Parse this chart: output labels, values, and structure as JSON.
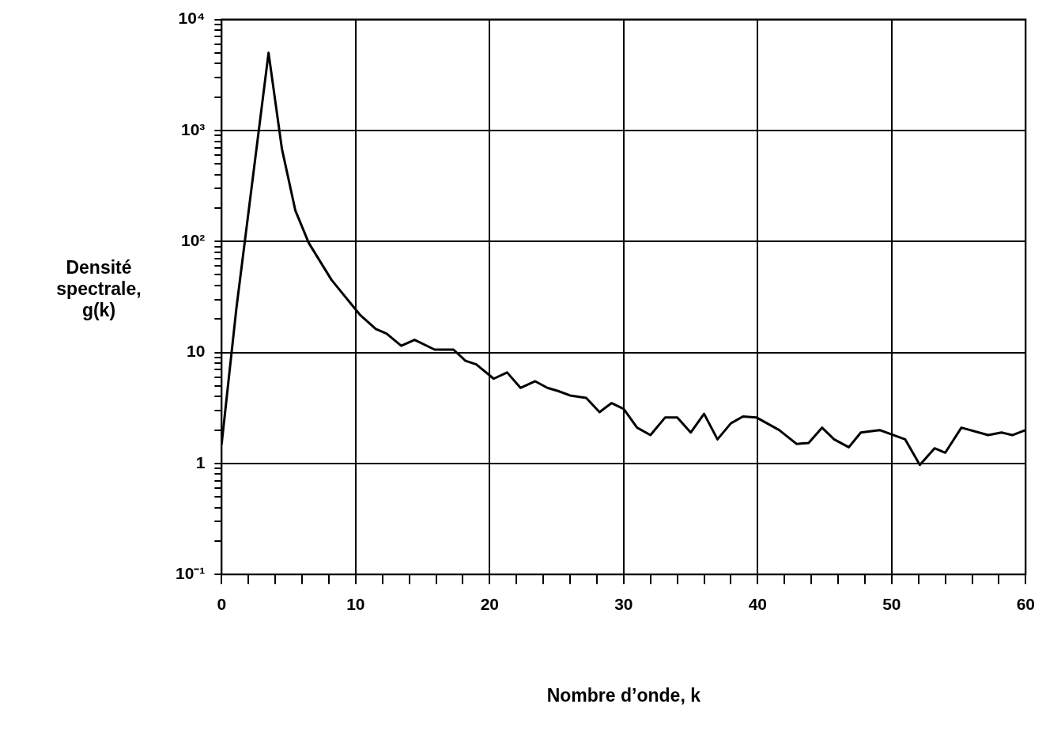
{
  "chart_data": {
    "type": "line",
    "xlabel": "Nombre d’onde, k",
    "ylabel": "Densité\nspectrale,\ng(k)",
    "log": "y",
    "grid": true,
    "marker": "none",
    "line_style": "solid",
    "legend": false,
    "xlim": [
      0,
      60
    ],
    "ylim": [
      0.1,
      10000
    ],
    "xticks": [
      0,
      {
        "value": 2,
        "label": null
      },
      {
        "value": 4,
        "label": null
      },
      {
        "value": 6,
        "label": null
      },
      {
        "value": 8,
        "label": null
      },
      10,
      {
        "value": 12,
        "label": null
      },
      {
        "value": 14,
        "label": null
      },
      {
        "value": 16,
        "label": null
      },
      {
        "value": 18,
        "label": null
      },
      20,
      {
        "value": 22,
        "label": null
      },
      {
        "value": 24,
        "label": null
      },
      {
        "value": 26,
        "label": null
      },
      {
        "value": 28,
        "label": null
      },
      30,
      {
        "value": 32,
        "label": null
      },
      {
        "value": 34,
        "label": null
      },
      {
        "value": 36,
        "label": null
      },
      {
        "value": 38,
        "label": null
      },
      40,
      {
        "value": 42,
        "label": null
      },
      {
        "value": 44,
        "label": null
      },
      {
        "value": 46,
        "label": null
      },
      {
        "value": 48,
        "label": null
      },
      50,
      {
        "value": 52,
        "label": null
      },
      {
        "value": 54,
        "label": null
      },
      {
        "value": 56,
        "label": null
      },
      {
        "value": 58,
        "label": null
      },
      60
    ],
    "yticks": [
      {
        "value": 0.1,
        "label": "10⁻¹"
      },
      {
        "value": 0.2,
        "label": null
      },
      {
        "value": 0.3,
        "label": null
      },
      {
        "value": 0.4,
        "label": null
      },
      {
        "value": 0.5,
        "label": null
      },
      {
        "value": 0.6,
        "label": null
      },
      {
        "value": 0.7,
        "label": null
      },
      {
        "value": 0.8,
        "label": null
      },
      {
        "value": 0.9,
        "label": null
      },
      1,
      {
        "value": 2,
        "label": null
      },
      {
        "value": 3,
        "label": null
      },
      {
        "value": 4,
        "label": null
      },
      {
        "value": 5,
        "label": null
      },
      {
        "value": 6,
        "label": null
      },
      {
        "value": 7,
        "label": null
      },
      {
        "value": 8,
        "label": null
      },
      {
        "value": 9,
        "label": null
      },
      10,
      {
        "value": 20,
        "label": null
      },
      {
        "value": 30,
        "label": null
      },
      {
        "value": 40,
        "label": null
      },
      {
        "value": 50,
        "label": null
      },
      {
        "value": 60,
        "label": null
      },
      {
        "value": 70,
        "label": null
      },
      {
        "value": 80,
        "label": null
      },
      {
        "value": 90,
        "label": null
      },
      {
        "value": 100,
        "label": "10²"
      },
      {
        "value": 200,
        "label": null
      },
      {
        "value": 300,
        "label": null
      },
      {
        "value": 400,
        "label": null
      },
      {
        "value": 500,
        "label": null
      },
      {
        "value": 600,
        "label": null
      },
      {
        "value": 700,
        "label": null
      },
      {
        "value": 800,
        "label": null
      },
      {
        "value": 900,
        "label": null
      },
      {
        "value": 1000,
        "label": "10³"
      },
      {
        "value": 2000,
        "label": null
      },
      {
        "value": 3000,
        "label": null
      },
      {
        "value": 4000,
        "label": null
      },
      {
        "value": 5000,
        "label": null
      },
      {
        "value": 6000,
        "label": null
      },
      {
        "value": 7000,
        "label": null
      },
      {
        "value": 8000,
        "label": null
      },
      {
        "value": 9000,
        "label": null
      },
      {
        "value": 10000,
        "label": "10⁴"
      }
    ],
    "series": [
      {
        "color": "#000000",
        "x": [
          0,
          1.1,
          3.5,
          4.5,
          5.5,
          6.5,
          8.2,
          10.3,
          11.5,
          12.3,
          13.4,
          14.4,
          15.9,
          17.3,
          18.2,
          19,
          20.3,
          21.3,
          22.3,
          23.4,
          24.3,
          25.1,
          26,
          27.2,
          28.2,
          29.1,
          30,
          31,
          32,
          33.1,
          34,
          35,
          36,
          37,
          38,
          38.9,
          39.9,
          41.6,
          42.9,
          43.8,
          44.8,
          45.7,
          46.8,
          47.7,
          49.1,
          51,
          52.1,
          53.2,
          54,
          55.2,
          57.2,
          58.2,
          59,
          60
        ],
        "values": [
          1.5,
          25,
          5000,
          680,
          190,
          97,
          45,
          22,
          16.3,
          14.8,
          11.5,
          13,
          10.6,
          10.6,
          8.4,
          7.8,
          5.8,
          6.6,
          4.8,
          5.5,
          4.8,
          4.5,
          4.1,
          3.9,
          2.9,
          3.5,
          3.1,
          2.1,
          1.8,
          2.6,
          2.6,
          1.9,
          2.8,
          1.65,
          2.3,
          2.65,
          2.6,
          2,
          1.5,
          1.53,
          2.1,
          1.65,
          1.4,
          1.9,
          2,
          1.65,
          0.97,
          1.37,
          1.25,
          2.1,
          1.8,
          1.9,
          1.8,
          2
        ]
      }
    ]
  }
}
